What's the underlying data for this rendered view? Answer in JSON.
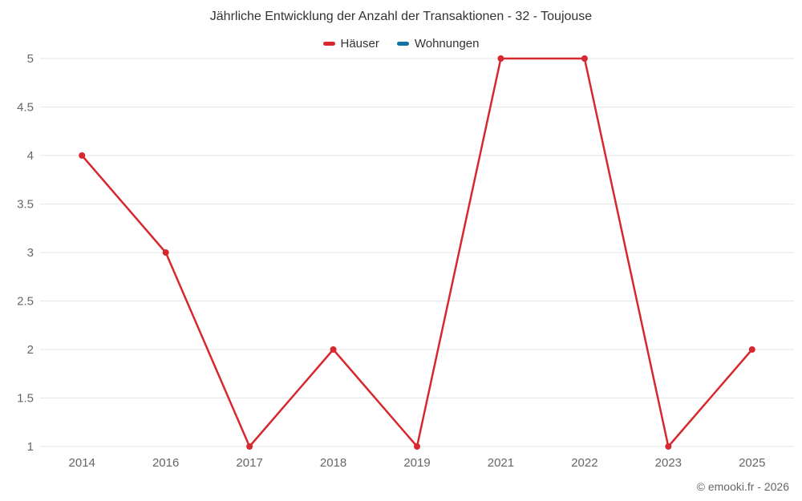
{
  "chart_data": {
    "type": "line",
    "title": "Jährliche Entwicklung der Anzahl der Transaktionen - 32 - Toujouse",
    "categories": [
      "2014",
      "2016",
      "2017",
      "2018",
      "2019",
      "2021",
      "2022",
      "2023",
      "2025"
    ],
    "series": [
      {
        "name": "Häuser",
        "color": "#d7282f",
        "values": [
          4,
          3,
          1,
          2,
          1,
          5,
          5,
          1,
          2
        ]
      },
      {
        "name": "Wohnungen",
        "color": "#1272a5",
        "values": []
      }
    ],
    "xlabel": "",
    "ylabel": "",
    "ylim": [
      1,
      5
    ],
    "ytick_interval": 0.5,
    "ytick_labels": [
      "1",
      "1.5",
      "2",
      "2.5",
      "3",
      "3.5",
      "4",
      "4.5",
      "5"
    ],
    "grid": "horizontal",
    "legend_position": "top"
  },
  "footer": {
    "credit": "© emooki.fr - 2026"
  },
  "colors": {
    "background": "#ffffff",
    "grid": "#e6e6e6",
    "axis_label": "#666666",
    "title": "#333333",
    "marker_fill": "#d7282f"
  }
}
